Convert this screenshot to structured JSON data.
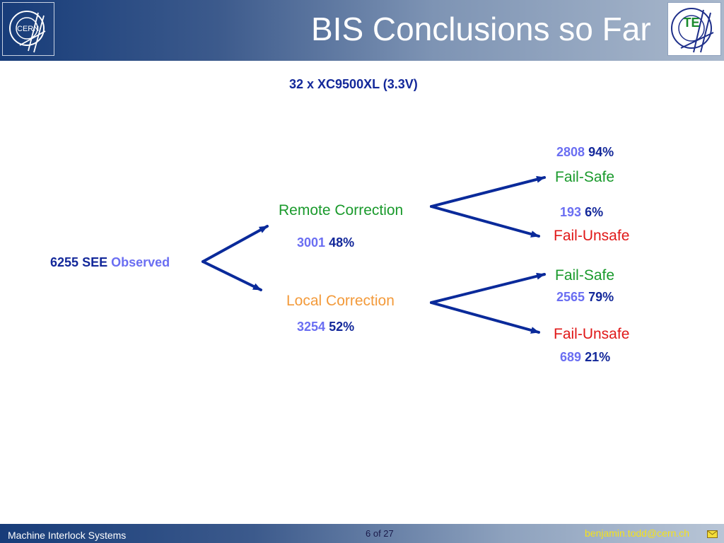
{
  "header": {
    "title": "BIS Conclusions so Far",
    "left_logo_icon": "cern-logo-icon",
    "right_logo_icon": "cern-te-logo-icon",
    "right_logo_text": "TE"
  },
  "diagram": {
    "device_label": "32 x XC9500XL (3.3V)",
    "root": {
      "count": "6255",
      "see": "SEE",
      "observed": "Observed"
    },
    "remote": {
      "label": "Remote Correction",
      "count": "3001",
      "pct": "48%",
      "fail_safe": {
        "label": "Fail-Safe",
        "count": "2808",
        "pct": "94%"
      },
      "fail_unsafe": {
        "label": "Fail-Unsafe",
        "count": "193",
        "pct": "6%"
      }
    },
    "local": {
      "label": "Local Correction",
      "count": "3254",
      "pct": "52%",
      "fail_safe": {
        "label": "Fail-Safe",
        "count": "2565",
        "pct": "79%"
      },
      "fail_unsafe": {
        "label": "Fail-Unsafe",
        "count": "689",
        "pct": "21%"
      }
    }
  },
  "footer": {
    "left": "Machine Interlock Systems",
    "page": "6 of 27",
    "email": "benjamin.todd@cern.ch",
    "email_icon": "envelope-icon"
  },
  "colors": {
    "header_blue": "#173c79",
    "arrow": "#0a2a9a",
    "navy_text": "#13289a",
    "periwinkle": "#6a6ef2",
    "green": "#1a9a2c",
    "red": "#e01818",
    "orange": "#f39a3a"
  }
}
